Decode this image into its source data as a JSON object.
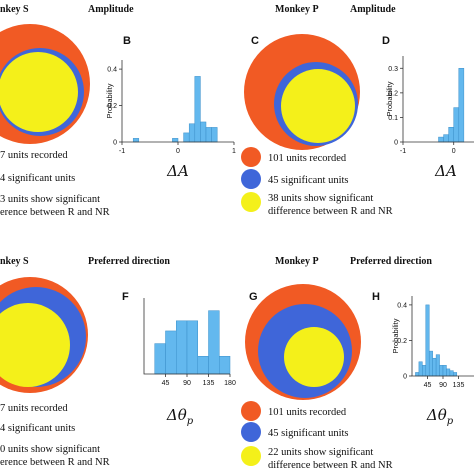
{
  "rows": [
    {
      "left_group": {
        "monkey_label": "nkey S",
        "title": "Amplitude",
        "legend": [
          {
            "text": "7 units recorded"
          },
          {
            "text": "4 significant units"
          },
          {
            "text": "3 units show significant",
            "text2": "erence between R and NR"
          }
        ]
      },
      "hist_left_label": "B",
      "group2_label": "C",
      "right_group": {
        "monkey_label": "Monkey P",
        "title": "Amplitude",
        "legend": [
          {
            "text": "101 units recorded"
          },
          {
            "text": "45 significant units"
          },
          {
            "text": "38 units show significant",
            "text2": "difference between R and NR"
          }
        ]
      },
      "hist_right_label": "D"
    },
    {
      "left_group": {
        "monkey_label": "nkey S",
        "title": "Preferred direction",
        "legend": [
          {
            "text": "7 units recorded"
          },
          {
            "text": "4 significant units"
          },
          {
            "text": "0 units show significant",
            "text2": "erence between R and NR"
          }
        ]
      },
      "hist_left_label": "F",
      "group2_label": "G",
      "right_group": {
        "monkey_label": "Monkey P",
        "title": "Preferred direction",
        "legend": [
          {
            "text": "101 units recorded"
          },
          {
            "text": "45 significant units"
          },
          {
            "text": "22 units show significant",
            "text2": "difference between R and NR"
          }
        ]
      },
      "hist_right_label": "H"
    }
  ],
  "colors": {
    "recorded": "#f15a24",
    "significant": "#3f66d9",
    "differs": "#f4f01a",
    "hist_bar": "#63b8ee"
  },
  "chart_data": [
    {
      "type": "bar",
      "panel": "B",
      "ylabel": "Probability",
      "xlabel": "ΔA",
      "xlim": [
        -1,
        1
      ],
      "ylim": [
        0,
        0.45
      ],
      "xticks": [
        -1,
        0,
        1
      ],
      "yticks": [
        0,
        0.2,
        0.4
      ],
      "bin_edges": [
        -0.8,
        -0.7,
        -0.6,
        -0.5,
        -0.4,
        -0.3,
        -0.2,
        -0.1,
        0.0,
        0.1,
        0.2,
        0.3,
        0.4,
        0.5,
        0.6,
        0.7
      ],
      "values": [
        0.02,
        0,
        0,
        0,
        0,
        0,
        0,
        0.02,
        0,
        0.05,
        0.1,
        0.36,
        0.11,
        0.08,
        0.08
      ]
    },
    {
      "type": "bar",
      "panel": "D",
      "ylabel": "Probability",
      "xlabel": "ΔA",
      "xlim": [
        -1,
        0.4
      ],
      "ylim": [
        0,
        0.35
      ],
      "xticks": [
        -1,
        0
      ],
      "yticks": [
        0,
        0.1,
        0.2,
        0.3
      ],
      "bin_edges": [
        -0.3,
        -0.2,
        -0.1,
        0.0,
        0.1,
        0.2
      ],
      "values": [
        0.02,
        0.03,
        0.06,
        0.14,
        0.3
      ]
    },
    {
      "type": "bar",
      "panel": "F",
      "ylabel": "",
      "xlabel": "Δθp",
      "xlim": [
        0,
        180
      ],
      "ylim": [
        0,
        1.5
      ],
      "xticks": [
        45,
        90,
        135,
        180
      ],
      "yticks": [],
      "bin_edges": [
        22.5,
        45,
        67.5,
        90,
        112.5,
        135,
        157.5,
        180
      ],
      "values": [
        0.6,
        0.85,
        1.05,
        1.05,
        0.35,
        1.25,
        0.35
      ]
    },
    {
      "type": "bar",
      "panel": "H",
      "ylabel": "Probability",
      "xlabel": "Δθp",
      "xlim": [
        0,
        180
      ],
      "ylim": [
        0,
        0.45
      ],
      "xticks": [
        45,
        90,
        135
      ],
      "yticks": [
        0,
        0.2,
        0.4
      ],
      "bin_edges": [
        10,
        20,
        30,
        40,
        50,
        60,
        70,
        80,
        90,
        100,
        110,
        120,
        130
      ],
      "values": [
        0.02,
        0.08,
        0.06,
        0.4,
        0.14,
        0.1,
        0.12,
        0.06,
        0.06,
        0.04,
        0.03,
        0.02
      ]
    }
  ]
}
